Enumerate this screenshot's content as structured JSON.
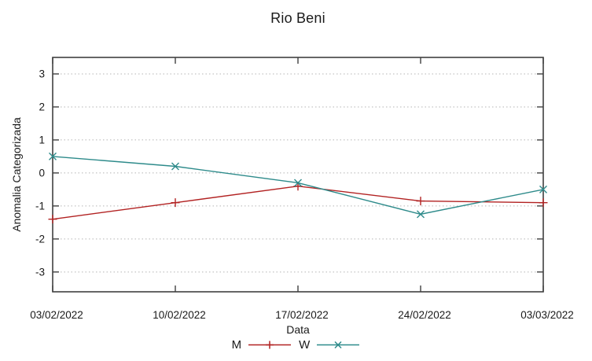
{
  "chart_data": {
    "type": "line",
    "title": "Rio Beni",
    "xlabel": "Data",
    "ylabel": "Anomalia Categorizada",
    "categories": [
      "03/02/2022",
      "10/02/2022",
      "17/02/2022",
      "24/02/2022",
      "03/03/2022"
    ],
    "series": [
      {
        "name": "M",
        "marker": "plus",
        "color": "#b22222",
        "values": [
          -1.4,
          -0.9,
          -0.4,
          -0.85,
          -0.9
        ]
      },
      {
        "name": "W",
        "marker": "cross",
        "color": "#2e8b8b",
        "values": [
          0.5,
          0.2,
          -0.3,
          -1.25,
          -0.5
        ]
      }
    ],
    "ylim": [
      -3.6,
      3.5
    ],
    "yticks": [
      3,
      2,
      1,
      0,
      -1,
      -2,
      -3
    ],
    "grid": "horizontal-dotted",
    "legend_position": "bottom-center"
  },
  "colors": {
    "background": "#ffffff",
    "border": "#404040",
    "grid": "#b5b5b5",
    "text": "#1a1a1a",
    "series_m": "#b22222",
    "series_w": "#2e8b8b"
  }
}
